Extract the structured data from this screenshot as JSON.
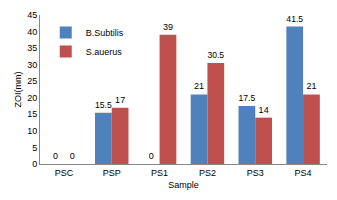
{
  "chart_data": {
    "type": "bar",
    "x_label": "Sample",
    "y_label": "ZOI(mm)",
    "categories": [
      "PSC",
      "PSP",
      "PS1",
      "PS2",
      "PS3",
      "PS4"
    ],
    "series": [
      {
        "name": "B.Subtilis",
        "color": "#4f81bd",
        "values": [
          0,
          15.5,
          0,
          21,
          17.5,
          41.5
        ]
      },
      {
        "name": "S.auerus",
        "color": "#c0504d",
        "values": [
          0,
          17,
          39,
          30.5,
          14,
          21
        ]
      }
    ],
    "ylim": [
      0,
      45
    ],
    "yticks": [
      0,
      5,
      10,
      15,
      20,
      25,
      30,
      35,
      40,
      45
    ],
    "grid": false,
    "legend": "top left",
    "data_labels": true
  }
}
